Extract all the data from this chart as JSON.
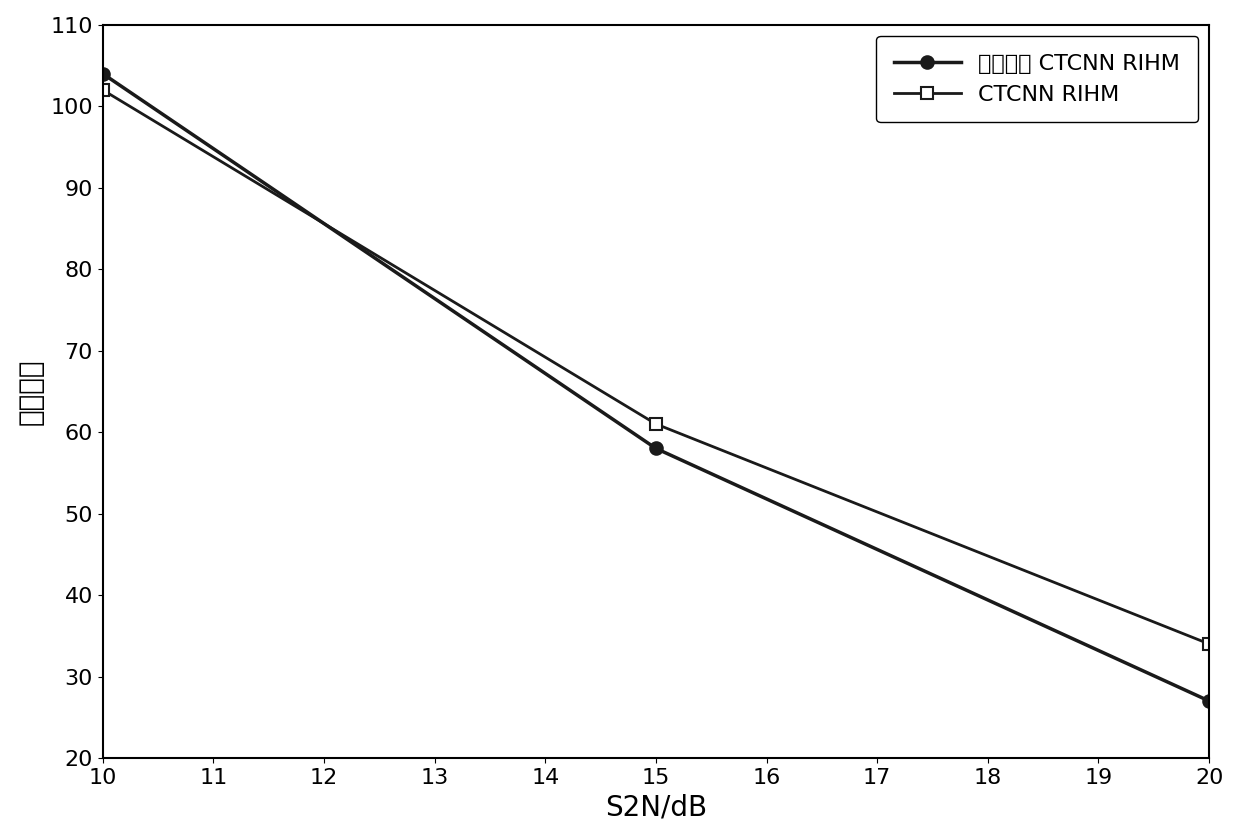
{
  "series1": {
    "label": "分段退火 CTCNN RIHM",
    "x": [
      10,
      15,
      20
    ],
    "y": [
      104,
      58,
      27
    ],
    "color": "#1a1a1a",
    "marker": "o",
    "marker_size": 9,
    "linewidth": 2.5,
    "marker_face": "#1a1a1a"
  },
  "series2": {
    "label": "CTCNN RIHM",
    "x": [
      10,
      15,
      20
    ],
    "y": [
      102,
      61,
      34
    ],
    "color": "#1a1a1a",
    "marker": "s",
    "marker_size": 9,
    "linewidth": 2.0,
    "marker_face": "#ffffff"
  },
  "xlabel": "S2N/dB",
  "ylabel": "收敛时间",
  "xlim": [
    10,
    20
  ],
  "ylim": [
    20,
    110
  ],
  "xticks": [
    10,
    11,
    12,
    13,
    14,
    15,
    16,
    17,
    18,
    19,
    20
  ],
  "yticks": [
    20,
    30,
    40,
    50,
    60,
    70,
    80,
    90,
    100,
    110
  ],
  "background_color": "#ffffff",
  "grid": false,
  "legend_loc": "upper right",
  "font_size": 18,
  "label_font_size": 20,
  "tick_font_size": 16
}
